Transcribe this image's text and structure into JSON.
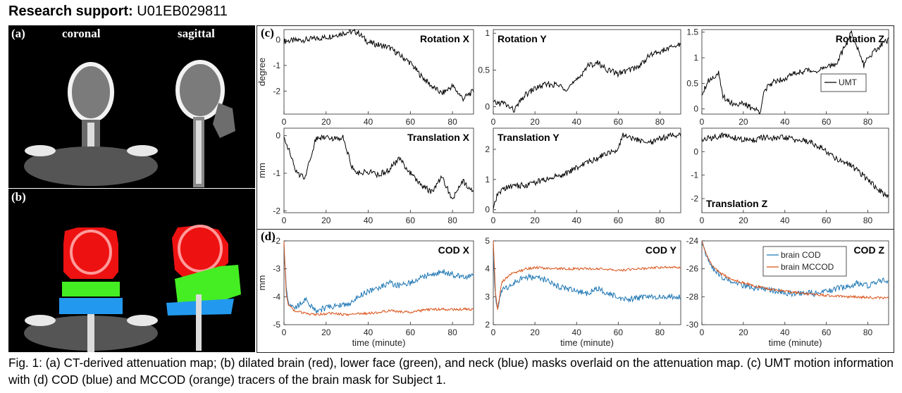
{
  "header": {
    "label": "Research support:",
    "grant": "U01EB029811"
  },
  "panels": {
    "a": {
      "label": "(a)",
      "views": [
        "coronal",
        "sagittal"
      ]
    },
    "b": {
      "label": "(b)"
    },
    "c": {
      "label": "(c)"
    },
    "d": {
      "label": "(d)"
    }
  },
  "caption": "Fig. 1: (a) CT-derived attenuation map; (b) dilated brain (red), lower face (green), and neck (blue) masks overlaid on the attenuation map. (c) UMT motion information with (d) COD (blue) and MCCOD (orange) tracers of the brain mask for Subject 1.",
  "colors": {
    "umt": "#000000",
    "cod": "#1f77b4",
    "mccod": "#d95319",
    "brain_mask": "#ee1111",
    "face_mask": "#44ee22",
    "neck_mask": "#2299ee"
  },
  "chart_data": [
    {
      "type": "line",
      "title": "Rotation X",
      "ylabel": "degree",
      "xlim": [
        0,
        90
      ],
      "ylim": [
        -2.9,
        0.4
      ],
      "xticks": [
        0,
        20,
        40,
        60,
        80
      ],
      "yticks": [
        0,
        -1,
        -2
      ],
      "ytick_labels": [
        "0",
        "-1",
        "-2"
      ],
      "series": [
        {
          "name": "UMT",
          "x": [
            0,
            10,
            20,
            30,
            35,
            40,
            50,
            55,
            60,
            65,
            70,
            75,
            80,
            85,
            90
          ],
          "y": [
            -0.05,
            0.0,
            0.1,
            0.3,
            0.3,
            -0.1,
            -0.3,
            -0.6,
            -0.9,
            -1.4,
            -1.8,
            -2.1,
            -1.8,
            -2.3,
            -2.0
          ]
        }
      ]
    },
    {
      "type": "line",
      "title": "Rotation Y",
      "ylabel": "",
      "xlim": [
        0,
        90
      ],
      "ylim": [
        -0.1,
        1.05
      ],
      "xticks": [
        0,
        20,
        40,
        60,
        80
      ],
      "yticks": [
        0,
        0.5,
        1
      ],
      "ytick_labels": [
        "0",
        "0.5",
        "1"
      ],
      "series": [
        {
          "name": "UMT",
          "x": [
            0,
            5,
            10,
            15,
            20,
            25,
            30,
            35,
            40,
            45,
            50,
            55,
            60,
            65,
            70,
            75,
            80,
            85,
            90
          ],
          "y": [
            0.05,
            0.05,
            -0.05,
            0.15,
            0.25,
            0.3,
            0.3,
            0.25,
            0.35,
            0.55,
            0.6,
            0.5,
            0.45,
            0.5,
            0.55,
            0.7,
            0.75,
            0.8,
            0.85
          ]
        }
      ]
    },
    {
      "type": "line",
      "title": "Rotation Z",
      "ylabel": "",
      "xlim": [
        0,
        90
      ],
      "ylim": [
        -0.1,
        1.55
      ],
      "xticks": [
        0,
        20,
        40,
        60,
        80
      ],
      "yticks": [
        0,
        0.5,
        1,
        1.5
      ],
      "ytick_labels": [
        "0",
        "0.5",
        "1",
        "1.5"
      ],
      "legend": {
        "entries": [
          "UMT"
        ],
        "position": "right"
      },
      "series": [
        {
          "name": "UMT",
          "x": [
            0,
            3,
            8,
            10,
            15,
            20,
            25,
            28,
            30,
            35,
            40,
            45,
            50,
            55,
            60,
            65,
            70,
            72,
            75,
            78,
            80,
            85,
            90
          ],
          "y": [
            0.3,
            0.55,
            0.7,
            0.25,
            0.1,
            0.1,
            0.0,
            -0.05,
            0.35,
            0.55,
            0.6,
            0.7,
            0.75,
            0.75,
            0.8,
            0.9,
            1.3,
            1.5,
            1.2,
            0.85,
            1.0,
            1.2,
            1.35
          ]
        }
      ]
    },
    {
      "type": "line",
      "title": "Translation X",
      "ylabel": "mm",
      "xlim": [
        0,
        90
      ],
      "ylim": [
        -2.05,
        0.2
      ],
      "xticks": [
        0,
        20,
        40,
        60,
        80
      ],
      "yticks": [
        0,
        -1,
        -2
      ],
      "ytick_labels": [
        "0",
        "-1",
        "-2"
      ],
      "series": [
        {
          "name": "UMT",
          "x": [
            0,
            3,
            6,
            10,
            15,
            20,
            25,
            28,
            32,
            35,
            40,
            45,
            50,
            55,
            60,
            65,
            70,
            75,
            80,
            85,
            90
          ],
          "y": [
            0.0,
            -0.5,
            -1.0,
            -1.1,
            -0.1,
            0.0,
            -0.1,
            0.0,
            -0.8,
            -1.0,
            -0.95,
            -1.05,
            -0.9,
            -0.6,
            -1.0,
            -1.3,
            -1.5,
            -1.1,
            -1.7,
            -1.2,
            -1.5
          ]
        }
      ]
    },
    {
      "type": "line",
      "title": "Translation Y",
      "ylabel": "",
      "xlim": [
        0,
        90
      ],
      "ylim": [
        -0.1,
        2.7
      ],
      "xticks": [
        0,
        20,
        40,
        60,
        80
      ],
      "yticks": [
        0,
        1,
        2
      ],
      "ytick_labels": [
        "0",
        "1",
        "2"
      ],
      "series": [
        {
          "name": "UMT",
          "x": [
            0,
            2,
            5,
            10,
            15,
            20,
            25,
            30,
            35,
            40,
            45,
            50,
            55,
            60,
            62,
            65,
            70,
            75,
            80,
            85,
            90
          ],
          "y": [
            0.0,
            0.5,
            0.7,
            0.8,
            0.8,
            0.9,
            1.0,
            1.1,
            1.2,
            1.4,
            1.55,
            1.7,
            1.9,
            2.0,
            2.5,
            2.4,
            2.3,
            2.2,
            2.35,
            2.45,
            2.5
          ]
        }
      ]
    },
    {
      "type": "line",
      "title": "Translation Z",
      "ylabel": "",
      "xlim": [
        0,
        90
      ],
      "ylim": [
        -2.6,
        1.0
      ],
      "xticks": [
        0,
        20,
        40,
        60,
        80
      ],
      "yticks": [
        0,
        -1,
        -2
      ],
      "ytick_labels": [
        "0",
        "-1",
        "-2"
      ],
      "series": [
        {
          "name": "UMT",
          "x": [
            0,
            5,
            10,
            15,
            20,
            25,
            30,
            35,
            40,
            45,
            50,
            55,
            60,
            65,
            70,
            75,
            80,
            85,
            90
          ],
          "y": [
            0.5,
            0.6,
            0.7,
            0.6,
            0.5,
            0.5,
            0.6,
            0.55,
            0.6,
            0.5,
            0.45,
            0.3,
            0.0,
            -0.3,
            -0.5,
            -0.8,
            -1.2,
            -1.6,
            -2.0
          ]
        }
      ]
    },
    {
      "type": "line",
      "title": "COD X",
      "ylabel": "mm",
      "xlabel": "time (minute)",
      "xlim": [
        0,
        90
      ],
      "ylim": [
        -5,
        -2
      ],
      "xticks": [
        0,
        20,
        40,
        60,
        80
      ],
      "yticks": [
        -2,
        -3,
        -4,
        -5
      ],
      "ytick_labels": [
        "-2",
        "-3",
        "-4",
        "-5"
      ],
      "series": [
        {
          "name": "brain COD",
          "x": [
            0,
            1,
            2,
            5,
            10,
            15,
            20,
            25,
            30,
            35,
            40,
            45,
            50,
            55,
            60,
            65,
            70,
            75,
            80,
            85,
            90
          ],
          "y": [
            -2.2,
            -3.5,
            -4.2,
            -4.4,
            -4.1,
            -4.5,
            -4.4,
            -4.3,
            -4.3,
            -4.0,
            -3.8,
            -3.7,
            -3.5,
            -3.6,
            -3.5,
            -3.3,
            -3.2,
            -3.1,
            -3.2,
            -3.3,
            -3.2
          ]
        },
        {
          "name": "brain MCCOD",
          "x": [
            0,
            1,
            2,
            5,
            10,
            15,
            20,
            25,
            30,
            35,
            40,
            50,
            60,
            70,
            80,
            90
          ],
          "y": [
            -2.0,
            -3.8,
            -4.3,
            -4.5,
            -4.6,
            -4.65,
            -4.6,
            -4.6,
            -4.65,
            -4.6,
            -4.6,
            -4.5,
            -4.55,
            -4.45,
            -4.45,
            -4.45
          ]
        }
      ]
    },
    {
      "type": "line",
      "title": "COD Y",
      "ylabel": "",
      "xlabel": "time (minute)",
      "xlim": [
        0,
        90
      ],
      "ylim": [
        2,
        5
      ],
      "xticks": [
        0,
        20,
        40,
        60,
        80
      ],
      "yticks": [
        2,
        3,
        4,
        5
      ],
      "ytick_labels": [
        "2",
        "3",
        "4",
        "5"
      ],
      "series": [
        {
          "name": "brain COD",
          "x": [
            0,
            1,
            2,
            4,
            8,
            12,
            16,
            20,
            25,
            30,
            35,
            40,
            45,
            50,
            55,
            60,
            65,
            70,
            75,
            80,
            85,
            90
          ],
          "y": [
            4.5,
            3.0,
            2.6,
            3.2,
            3.4,
            3.6,
            3.7,
            3.7,
            3.6,
            3.4,
            3.3,
            3.2,
            3.1,
            3.3,
            3.1,
            3.0,
            2.9,
            2.95,
            3.0,
            3.0,
            3.0,
            3.0
          ]
        },
        {
          "name": "brain MCCOD",
          "x": [
            0,
            1,
            2,
            4,
            8,
            12,
            16,
            20,
            30,
            40,
            50,
            60,
            70,
            80,
            90
          ],
          "y": [
            5.0,
            3.2,
            2.5,
            3.5,
            3.8,
            3.9,
            4.0,
            4.05,
            4.0,
            4.0,
            4.0,
            3.95,
            4.0,
            4.05,
            4.05
          ]
        }
      ]
    },
    {
      "type": "line",
      "title": "COD Z",
      "ylabel": "",
      "xlabel": "time (minute)",
      "xlim": [
        0,
        90
      ],
      "ylim": [
        -30,
        -24
      ],
      "xticks": [
        0,
        20,
        40,
        60,
        80
      ],
      "yticks": [
        -24,
        -26,
        -28,
        -30
      ],
      "ytick_labels": [
        "-24",
        "-26",
        "-28",
        "-30"
      ],
      "legend": {
        "entries": [
          "brain COD",
          "brain MCCOD"
        ],
        "position": "top-right"
      },
      "series": [
        {
          "name": "brain COD",
          "x": [
            0,
            2,
            5,
            8,
            10,
            15,
            20,
            25,
            30,
            35,
            40,
            45,
            50,
            55,
            60,
            65,
            70,
            75,
            80,
            85,
            90
          ],
          "y": [
            -24.0,
            -25.0,
            -25.9,
            -26.3,
            -26.6,
            -27.0,
            -27.2,
            -27.4,
            -27.5,
            -27.6,
            -27.7,
            -27.8,
            -27.7,
            -27.8,
            -27.6,
            -27.4,
            -27.3,
            -27.0,
            -27.2,
            -26.9,
            -26.8
          ]
        },
        {
          "name": "brain MCCOD",
          "x": [
            0,
            2,
            5,
            8,
            10,
            15,
            20,
            25,
            30,
            40,
            50,
            60,
            70,
            80,
            90
          ],
          "y": [
            -24.0,
            -24.9,
            -25.8,
            -26.2,
            -26.4,
            -26.8,
            -27.0,
            -27.2,
            -27.4,
            -27.6,
            -27.8,
            -27.9,
            -28.0,
            -28.05,
            -28.1
          ]
        }
      ]
    }
  ]
}
